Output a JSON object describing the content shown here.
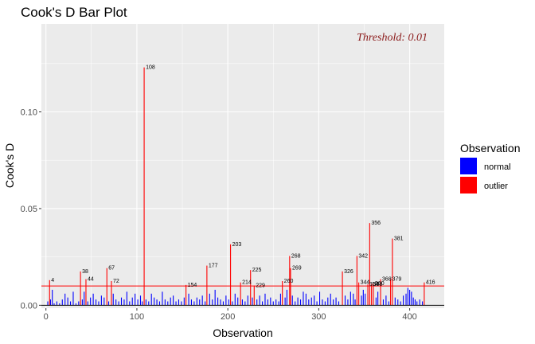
{
  "chart_data": {
    "type": "bar",
    "title": "Cook's D Bar Plot",
    "xlabel": "Observation",
    "ylabel": "Cook's D",
    "xlim": [
      -5,
      438
    ],
    "ylim": [
      -0.0015,
      0.1455
    ],
    "x_ticks": [
      0,
      100,
      200,
      300,
      400
    ],
    "x_tick_labels": [
      "0",
      "100",
      "200",
      "300",
      "400"
    ],
    "y_ticks": [
      0.0,
      0.05,
      0.1
    ],
    "y_tick_labels": [
      "0.00",
      "0.05",
      "0.10"
    ],
    "threshold": 0.01,
    "annotation": "Threshold: 0.01",
    "grid": true,
    "legend": {
      "title": "Observation",
      "position": "right",
      "items": [
        {
          "label": "normal",
          "color": "#0000ff"
        },
        {
          "label": "outlier",
          "color": "#ff0000"
        }
      ]
    },
    "colors": {
      "normal": "#0000ff",
      "outlier": "#ff0000",
      "annotation": "#8b1a1a",
      "panel": "#ebebeb",
      "grid": "#ffffff"
    },
    "outliers": [
      {
        "x": 4,
        "y": 0.013,
        "label": "4"
      },
      {
        "x": 38,
        "y": 0.0175,
        "label": "38"
      },
      {
        "x": 44,
        "y": 0.0135,
        "label": "44"
      },
      {
        "x": 67,
        "y": 0.0192,
        "label": "67"
      },
      {
        "x": 72,
        "y": 0.0125,
        "label": "72"
      },
      {
        "x": 108,
        "y": 0.123,
        "label": "108"
      },
      {
        "x": 154,
        "y": 0.0105,
        "label": "154"
      },
      {
        "x": 177,
        "y": 0.0205,
        "label": "177"
      },
      {
        "x": 203,
        "y": 0.0315,
        "label": "203"
      },
      {
        "x": 214,
        "y": 0.0118,
        "label": "214"
      },
      {
        "x": 225,
        "y": 0.0182,
        "label": "225"
      },
      {
        "x": 229,
        "y": 0.0102,
        "label": "229"
      },
      {
        "x": 260,
        "y": 0.0125,
        "label": "260"
      },
      {
        "x": 268,
        "y": 0.0255,
        "label": "268"
      },
      {
        "x": 269,
        "y": 0.0192,
        "label": "269"
      },
      {
        "x": 326,
        "y": 0.0175,
        "label": "326"
      },
      {
        "x": 342,
        "y": 0.0255,
        "label": "342"
      },
      {
        "x": 344,
        "y": 0.0118,
        "label": "344"
      },
      {
        "x": 354,
        "y": 0.0108,
        "label": "354"
      },
      {
        "x": 356,
        "y": 0.0425,
        "label": "356"
      },
      {
        "x": 358,
        "y": 0.0108,
        "label": "358"
      },
      {
        "x": 360,
        "y": 0.0112,
        "label": "360"
      },
      {
        "x": 368,
        "y": 0.0135,
        "label": "368"
      },
      {
        "x": 379,
        "y": 0.0135,
        "label": "379"
      },
      {
        "x": 381,
        "y": 0.0345,
        "label": "381"
      },
      {
        "x": 416,
        "y": 0.0118,
        "label": "416"
      }
    ],
    "normal": [
      {
        "x": 2,
        "y": 0.002
      },
      {
        "x": 5,
        "y": 0.003
      },
      {
        "x": 7,
        "y": 0.008
      },
      {
        "x": 9,
        "y": 0.001
      },
      {
        "x": 12,
        "y": 0.002
      },
      {
        "x": 15,
        "y": 0.001
      },
      {
        "x": 18,
        "y": 0.003
      },
      {
        "x": 21,
        "y": 0.006
      },
      {
        "x": 24,
        "y": 0.004
      },
      {
        "x": 27,
        "y": 0.002
      },
      {
        "x": 30,
        "y": 0.007
      },
      {
        "x": 33,
        "y": 0.001
      },
      {
        "x": 36,
        "y": 0.002
      },
      {
        "x": 40,
        "y": 0.003
      },
      {
        "x": 42,
        "y": 0.007
      },
      {
        "x": 46,
        "y": 0.002
      },
      {
        "x": 49,
        "y": 0.004
      },
      {
        "x": 52,
        "y": 0.006
      },
      {
        "x": 55,
        "y": 0.003
      },
      {
        "x": 58,
        "y": 0.002
      },
      {
        "x": 61,
        "y": 0.005
      },
      {
        "x": 64,
        "y": 0.004
      },
      {
        "x": 69,
        "y": 0.002
      },
      {
        "x": 74,
        "y": 0.006
      },
      {
        "x": 77,
        "y": 0.003
      },
      {
        "x": 80,
        "y": 0.002
      },
      {
        "x": 83,
        "y": 0.004
      },
      {
        "x": 86,
        "y": 0.003
      },
      {
        "x": 89,
        "y": 0.007
      },
      {
        "x": 92,
        "y": 0.002
      },
      {
        "x": 95,
        "y": 0.004
      },
      {
        "x": 98,
        "y": 0.006
      },
      {
        "x": 101,
        "y": 0.003
      },
      {
        "x": 104,
        "y": 0.005
      },
      {
        "x": 106,
        "y": 0.002
      },
      {
        "x": 110,
        "y": 0.003
      },
      {
        "x": 113,
        "y": 0.002
      },
      {
        "x": 116,
        "y": 0.006
      },
      {
        "x": 119,
        "y": 0.004
      },
      {
        "x": 122,
        "y": 0.003
      },
      {
        "x": 125,
        "y": 0.002
      },
      {
        "x": 128,
        "y": 0.007
      },
      {
        "x": 131,
        "y": 0.003
      },
      {
        "x": 134,
        "y": 0.002
      },
      {
        "x": 137,
        "y": 0.004
      },
      {
        "x": 140,
        "y": 0.005
      },
      {
        "x": 143,
        "y": 0.002
      },
      {
        "x": 146,
        "y": 0.003
      },
      {
        "x": 149,
        "y": 0.002
      },
      {
        "x": 152,
        "y": 0.004
      },
      {
        "x": 157,
        "y": 0.006
      },
      {
        "x": 160,
        "y": 0.003
      },
      {
        "x": 163,
        "y": 0.002
      },
      {
        "x": 166,
        "y": 0.004
      },
      {
        "x": 169,
        "y": 0.003
      },
      {
        "x": 172,
        "y": 0.005
      },
      {
        "x": 175,
        "y": 0.002
      },
      {
        "x": 180,
        "y": 0.006
      },
      {
        "x": 183,
        "y": 0.003
      },
      {
        "x": 186,
        "y": 0.008
      },
      {
        "x": 189,
        "y": 0.004
      },
      {
        "x": 192,
        "y": 0.003
      },
      {
        "x": 195,
        "y": 0.002
      },
      {
        "x": 198,
        "y": 0.005
      },
      {
        "x": 201,
        "y": 0.003
      },
      {
        "x": 205,
        "y": 0.002
      },
      {
        "x": 208,
        "y": 0.006
      },
      {
        "x": 211,
        "y": 0.004
      },
      {
        "x": 216,
        "y": 0.003
      },
      {
        "x": 219,
        "y": 0.002
      },
      {
        "x": 222,
        "y": 0.005
      },
      {
        "x": 227,
        "y": 0.004
      },
      {
        "x": 232,
        "y": 0.003
      },
      {
        "x": 235,
        "y": 0.005
      },
      {
        "x": 238,
        "y": 0.002
      },
      {
        "x": 241,
        "y": 0.006
      },
      {
        "x": 244,
        "y": 0.003
      },
      {
        "x": 247,
        "y": 0.004
      },
      {
        "x": 250,
        "y": 0.002
      },
      {
        "x": 253,
        "y": 0.003
      },
      {
        "x": 256,
        "y": 0.002
      },
      {
        "x": 258,
        "y": 0.006
      },
      {
        "x": 263,
        "y": 0.004
      },
      {
        "x": 265,
        "y": 0.008
      },
      {
        "x": 271,
        "y": 0.005
      },
      {
        "x": 274,
        "y": 0.002
      },
      {
        "x": 277,
        "y": 0.004
      },
      {
        "x": 280,
        "y": 0.003
      },
      {
        "x": 283,
        "y": 0.007
      },
      {
        "x": 286,
        "y": 0.006
      },
      {
        "x": 289,
        "y": 0.003
      },
      {
        "x": 292,
        "y": 0.004
      },
      {
        "x": 295,
        "y": 0.005
      },
      {
        "x": 298,
        "y": 0.002
      },
      {
        "x": 301,
        "y": 0.007
      },
      {
        "x": 304,
        "y": 0.003
      },
      {
        "x": 307,
        "y": 0.002
      },
      {
        "x": 310,
        "y": 0.004
      },
      {
        "x": 313,
        "y": 0.006
      },
      {
        "x": 316,
        "y": 0.003
      },
      {
        "x": 319,
        "y": 0.004
      },
      {
        "x": 322,
        "y": 0.002
      },
      {
        "x": 329,
        "y": 0.005
      },
      {
        "x": 332,
        "y": 0.003
      },
      {
        "x": 335,
        "y": 0.007
      },
      {
        "x": 338,
        "y": 0.006
      },
      {
        "x": 340,
        "y": 0.003
      },
      {
        "x": 347,
        "y": 0.005
      },
      {
        "x": 349,
        "y": 0.008
      },
      {
        "x": 351,
        "y": 0.006
      },
      {
        "x": 363,
        "y": 0.004
      },
      {
        "x": 365,
        "y": 0.007
      },
      {
        "x": 371,
        "y": 0.003
      },
      {
        "x": 374,
        "y": 0.005
      },
      {
        "x": 377,
        "y": 0.002
      },
      {
        "x": 384,
        "y": 0.004
      },
      {
        "x": 387,
        "y": 0.003
      },
      {
        "x": 390,
        "y": 0.002
      },
      {
        "x": 393,
        "y": 0.005
      },
      {
        "x": 396,
        "y": 0.006
      },
      {
        "x": 398,
        "y": 0.009
      },
      {
        "x": 400,
        "y": 0.008
      },
      {
        "x": 402,
        "y": 0.007
      },
      {
        "x": 404,
        "y": 0.004
      },
      {
        "x": 406,
        "y": 0.003
      },
      {
        "x": 408,
        "y": 0.002
      },
      {
        "x": 411,
        "y": 0.003
      },
      {
        "x": 414,
        "y": 0.002
      }
    ]
  }
}
